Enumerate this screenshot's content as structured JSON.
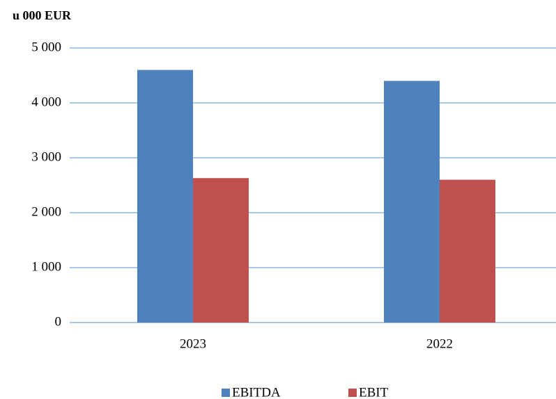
{
  "chart_data": {
    "type": "bar",
    "title": "u 000 EUR",
    "categories": [
      "2023",
      "2022"
    ],
    "series": [
      {
        "name": "EBITDA",
        "color": "#4f81bd",
        "values": [
          4600,
          4400
        ]
      },
      {
        "name": "EBIT",
        "color": "#c0504d",
        "values": [
          2630,
          2600
        ]
      }
    ],
    "ylim": [
      0,
      5000
    ],
    "yticks": [
      0,
      {
        "value": 1000,
        "label": "1 000"
      },
      {
        "value": 2000,
        "label": "2 000"
      },
      {
        "value": 3000,
        "label": "3 000"
      },
      {
        "value": 4000,
        "label": "4 000"
      },
      {
        "value": 5000,
        "label": "5 000"
      }
    ],
    "grid": true,
    "legend": "bottom"
  }
}
